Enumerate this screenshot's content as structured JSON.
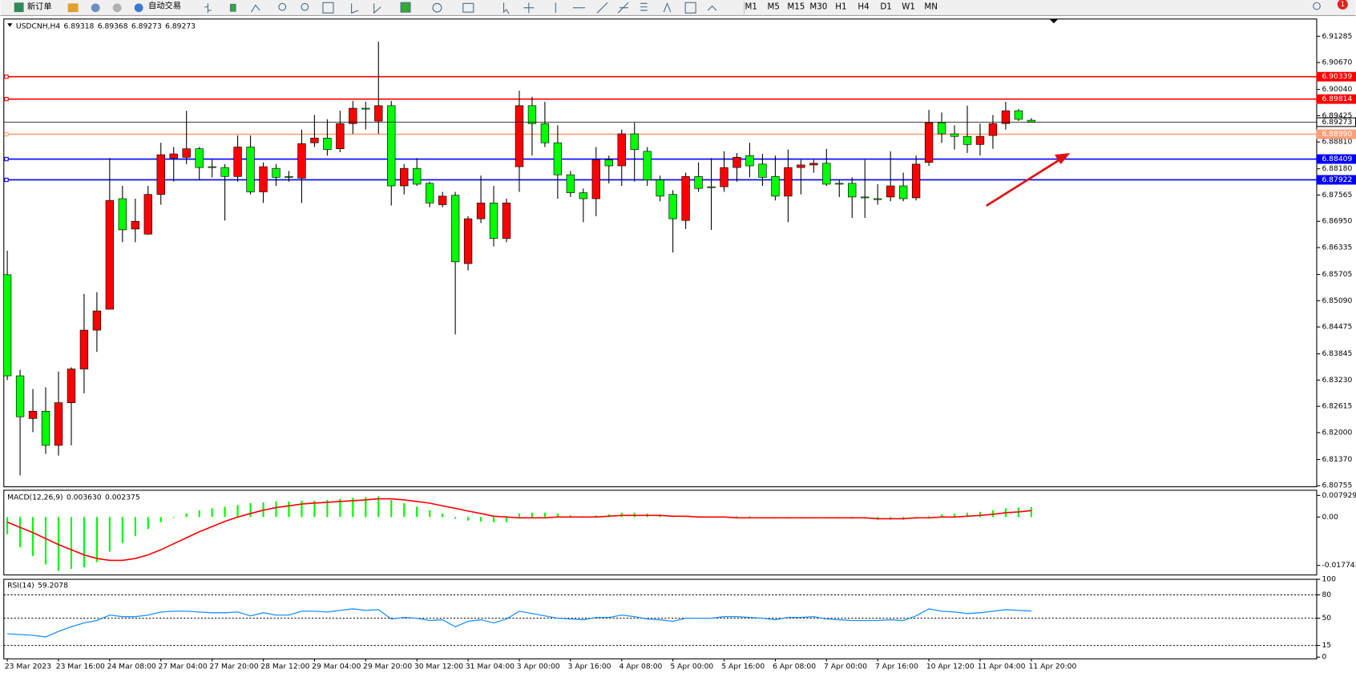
{
  "toolbar": {
    "buttons": [
      "新订单",
      "自动交易"
    ],
    "timeframes": [
      "M1",
      "M5",
      "M15",
      "M30",
      "H1",
      "H4",
      "D1",
      "W1",
      "MN"
    ],
    "notification_count": 1
  },
  "chart_data": [
    {
      "type": "candlestick",
      "symbol": "USDCNH,H4",
      "categories": [
        "23 Mar 2023",
        null,
        null,
        null,
        "23 Mar 16:00",
        null,
        null,
        null,
        "24 Mar 08:00",
        null,
        null,
        null,
        "27 Mar 04:00",
        null,
        null,
        null,
        "27 Mar 20:00",
        null,
        null,
        null,
        "28 Mar 12:00",
        null,
        null,
        null,
        "29 Mar 04:00",
        null,
        null,
        null,
        "29 Mar 20:00",
        null,
        null,
        null,
        "30 Mar 12:00",
        null,
        null,
        null,
        "31 Mar 04:00",
        null,
        null,
        null,
        "3 Apr 00:00",
        null,
        null,
        null,
        "3 Apr 16:00",
        null,
        null,
        null,
        "4 Apr 08:00",
        null,
        null,
        null,
        "5 Apr 00:00",
        null,
        null,
        null,
        "5 Apr 16:00",
        null,
        null,
        null,
        "6 Apr 08:00",
        null,
        null,
        null,
        "7 Apr 00:00",
        null,
        null,
        null,
        "7 Apr 16:00",
        null,
        null,
        null,
        "10 Apr 12:00",
        null,
        null,
        null,
        "11 Apr 04:00",
        null,
        null,
        null,
        "11 Apr 20:00"
      ],
      "open": [
        6.857,
        6.8333,
        6.8233,
        6.825,
        6.817,
        6.827,
        6.8349,
        6.844,
        6.8489,
        6.8748,
        6.8677,
        6.8665,
        6.8758,
        6.8843,
        6.8845,
        6.8865,
        6.8823,
        6.8821,
        6.88,
        6.8869,
        6.8764,
        6.8819,
        6.88,
        6.8796,
        6.8879,
        6.889,
        6.8865,
        6.8924,
        6.896,
        6.893,
        6.8966,
        6.8778,
        6.8819,
        6.8784,
        6.8734,
        6.8756,
        6.8596,
        6.8701,
        6.8738,
        6.8655,
        6.8823,
        6.8966,
        6.8924,
        6.8879,
        6.8804,
        6.8762,
        6.8748,
        6.8839,
        6.8825,
        6.89,
        6.8859,
        6.8792,
        6.8758,
        6.8697,
        6.88,
        6.8776,
        6.8776,
        6.8821,
        6.8849,
        6.8829,
        6.88,
        6.8754,
        6.8821,
        6.8827,
        6.8831,
        6.8784,
        6.8784,
        6.8752,
        6.8748,
        6.8752,
        6.8778,
        6.875,
        6.8833,
        6.8926,
        6.89,
        6.8894,
        6.8875,
        6.8896,
        6.8924,
        6.8954,
        6.89318
      ],
      "high": [
        6.8626,
        6.8347,
        6.8302,
        6.8306,
        6.8343,
        6.8353,
        6.8525,
        6.8529,
        6.8843,
        6.8778,
        6.8748,
        6.8778,
        6.8879,
        6.8869,
        6.8954,
        6.8869,
        6.8839,
        6.8829,
        6.8896,
        6.8896,
        6.8833,
        6.8829,
        6.8813,
        6.891,
        6.8944,
        6.8934,
        6.8954,
        6.8977,
        6.8975,
        6.9116,
        6.8977,
        6.8829,
        6.8843,
        6.8788,
        6.8764,
        6.8764,
        6.8707,
        6.8802,
        6.8778,
        6.8748,
        6.9001,
        6.8987,
        6.8975,
        6.892,
        6.8813,
        6.8772,
        6.8869,
        6.8849,
        6.891,
        6.8926,
        6.8869,
        6.8802,
        6.8768,
        6.8809,
        6.8833,
        6.8843,
        6.8859,
        6.8855,
        6.8879,
        6.8853,
        6.8849,
        6.8863,
        6.8839,
        6.8839,
        6.8865,
        6.8792,
        6.8798,
        6.8839,
        6.8782,
        6.8859,
        6.8809,
        6.8849,
        6.8956,
        6.895,
        6.892,
        6.8966,
        6.8924,
        6.8944,
        6.8975,
        6.8958,
        6.89368
      ],
      "low": [
        6.8323,
        6.81,
        6.8201,
        6.815,
        6.8146,
        6.817,
        6.8292,
        6.8389,
        6.8489,
        6.8646,
        6.8646,
        6.8663,
        6.8734,
        6.8788,
        6.8829,
        6.8792,
        6.8798,
        6.8697,
        6.8788,
        6.8758,
        6.8738,
        6.8778,
        6.8788,
        6.8738,
        6.8869,
        6.8849,
        6.8857,
        6.89,
        6.891,
        6.89,
        6.8732,
        6.8758,
        6.8778,
        6.8728,
        6.8728,
        6.843,
        6.858,
        6.8691,
        6.8636,
        6.8646,
        6.8764,
        6.8849,
        6.8869,
        6.8748,
        6.8752,
        6.8693,
        6.8707,
        6.8784,
        6.8778,
        6.8788,
        6.8778,
        6.8742,
        6.8622,
        6.8677,
        6.8764,
        6.8675,
        6.8764,
        6.8788,
        6.8798,
        6.8778,
        6.8744,
        6.8693,
        6.8758,
        6.8809,
        6.8778,
        6.8752,
        6.8703,
        6.8703,
        6.8734,
        6.8742,
        6.8742,
        6.8744,
        6.8825,
        6.8879,
        6.8863,
        6.8855,
        6.8849,
        6.8865,
        6.891,
        6.893,
        6.89273
      ],
      "close": [
        6.8333,
        6.8237,
        6.825,
        6.817,
        6.827,
        6.8349,
        6.844,
        6.8485,
        6.8744,
        6.8675,
        6.8695,
        6.8758,
        6.8851,
        6.8853,
        6.8865,
        6.8821,
        6.8821,
        6.88,
        6.8869,
        6.8764,
        6.8823,
        6.8798,
        6.8798,
        6.8877,
        6.889,
        6.8863,
        6.8924,
        6.896,
        6.8958,
        6.8966,
        6.8778,
        6.8819,
        6.8782,
        6.8738,
        6.8754,
        6.86,
        6.8701,
        6.8738,
        6.8655,
        6.8738,
        6.8966,
        6.8924,
        6.8879,
        6.8804,
        6.8762,
        6.8748,
        6.8839,
        6.8825,
        6.89,
        6.8863,
        6.8792,
        6.8754,
        6.8701,
        6.88,
        6.8772,
        6.8774,
        6.8821,
        6.8845,
        6.8825,
        6.8798,
        6.8754,
        6.8821,
        6.8827,
        6.8831,
        6.8782,
        6.8782,
        6.8752,
        6.875,
        6.8748,
        6.8778,
        6.8748,
        6.8829,
        6.8926,
        6.89,
        6.8894,
        6.8875,
        6.8894,
        6.8924,
        6.8954,
        6.8934,
        6.89273
      ],
      "up_color": "#ff0000",
      "down_color": "#00ff00",
      "ylim": [
        6.8073,
        6.9169
      ],
      "yticks": [
        6.91285,
        {
          "value": 6.9067,
          "label": "6.90670"
        },
        {
          "value": 6.9004,
          "label": "6.90040"
        },
        6.89425,
        {
          "value": 6.8881,
          "label": "6.88810"
        },
        {
          "value": 6.8818,
          "label": "6.88180"
        },
        6.87565,
        {
          "value": 6.8695,
          "label": "6.86950"
        },
        6.86335,
        6.85705,
        {
          "value": 6.8509,
          "label": "6.85090"
        },
        6.84475,
        6.83845,
        {
          "value": 6.8323,
          "label": "6.83230"
        },
        6.82615,
        {
          "value": 6.82,
          "label": "6.82000"
        },
        {
          "value": 6.8137,
          "label": "6.81370"
        },
        6.80755
      ],
      "levels": [
        {
          "value": 6.90339,
          "color": "#ff0000"
        },
        {
          "value": 6.89814,
          "color": "#ff0000"
        },
        {
          "value": 6.8899,
          "label": "6.88990",
          "color": "#ffa07a"
        },
        {
          "value": 6.88409,
          "color": "#0000ff"
        },
        {
          "value": 6.87922,
          "color": "#0000ff"
        }
      ]
    },
    {
      "type": "macd",
      "title": "MACD(12,26,9)",
      "histogram": {
        "color": "#00ff00",
        "values": [
          -0.0063,
          -0.0111,
          -0.0143,
          -0.0174,
          -0.0197,
          -0.019,
          -0.0184,
          -0.0165,
          -0.0127,
          -0.0095,
          -0.007,
          -0.0044,
          -0.0019,
          -0.0003,
          0.0013,
          0.0025,
          0.0032,
          0.0038,
          0.0044,
          0.0051,
          0.0054,
          0.0057,
          0.0057,
          0.006,
          0.006,
          0.0063,
          0.0067,
          0.007,
          0.0073,
          0.0076,
          0.0063,
          0.0051,
          0.0038,
          0.0025,
          0.0013,
          -0.0006,
          -0.0013,
          -0.0016,
          -0.0019,
          -0.0019,
          0.0013,
          0.0016,
          0.0016,
          0.0013,
          0.0006,
          0.0003,
          0.0006,
          0.001,
          0.0016,
          0.0016,
          0.0013,
          0.001,
          0.0003,
          0.0003,
          0.0003,
          0,
          0.0003,
          0.0003,
          0.0003,
          0,
          -0.0003,
          -0.0003,
          0,
          0,
          0,
          -0.0003,
          -0.0006,
          -0.0006,
          -0.001,
          -0.001,
          -0.001,
          -0.0006,
          0.0003,
          0.001,
          0.0013,
          0.0016,
          0.0019,
          0.0025,
          0.0032,
          0.0035,
          0.00363
        ],
        "value_labels": [
          null,
          null,
          null,
          null,
          null,
          null,
          null,
          null,
          null,
          null,
          null,
          null,
          null,
          null,
          null,
          null,
          null,
          null,
          null,
          null,
          null,
          null,
          null,
          null,
          null,
          null,
          null,
          null,
          null,
          null,
          null,
          null,
          null,
          null,
          null,
          null,
          null,
          null,
          null,
          null,
          null,
          null,
          null,
          null,
          null,
          null,
          null,
          null,
          null,
          null,
          null,
          null,
          null,
          null,
          null,
          null,
          null,
          null,
          null,
          null,
          null,
          null,
          null,
          null,
          null,
          null,
          null,
          null,
          null,
          null,
          null,
          null,
          null,
          null,
          null,
          null,
          null,
          null,
          null,
          null,
          "0.003630"
        ]
      },
      "signal": {
        "color": "#ff0000",
        "values": [
          -0.0019,
          -0.0038,
          -0.0057,
          -0.0079,
          -0.0101,
          -0.012,
          -0.0139,
          -0.0152,
          -0.0159,
          -0.0159,
          -0.0152,
          -0.0139,
          -0.012,
          -0.0098,
          -0.0076,
          -0.0054,
          -0.0035,
          -0.0016,
          0,
          0.0013,
          0.0025,
          0.0035,
          0.0041,
          0.0048,
          0.0051,
          0.0054,
          0.0057,
          0.006,
          0.0063,
          0.0067,
          0.0067,
          0.0063,
          0.0057,
          0.0051,
          0.0041,
          0.0032,
          0.0022,
          0.0013,
          0.0003,
          0,
          -0.0003,
          -0.0003,
          -0.0003,
          0,
          0,
          0,
          0,
          0.0003,
          0.0006,
          0.0006,
          0.0006,
          0.0006,
          0.0003,
          0.0003,
          0,
          0,
          0,
          -0.0003,
          -0.0003,
          -0.0003,
          -0.0003,
          -0.0003,
          -0.0003,
          -0.0003,
          -0.0003,
          -0.0003,
          -0.0003,
          -0.0003,
          -0.0006,
          -0.0006,
          -0.0006,
          -0.0003,
          -0.0003,
          0,
          0,
          0.0003,
          0.0006,
          0.001,
          0.0016,
          0.0019,
          0.002375
        ]
      },
      "ylim": [
        -0.02125,
        0.00983
      ],
      "yticks": [
        0.007929,
        {
          "value": 0,
          "label": "0.00"
        },
        -0.017743
      ]
    },
    {
      "type": "rsi",
      "title": "RSI(14)",
      "color": "#1e90ff",
      "values": [
        30,
        29,
        28,
        26,
        33,
        39,
        44,
        47,
        54,
        52,
        52,
        54,
        58,
        59,
        59,
        58,
        57,
        57,
        58,
        53,
        57,
        54,
        54,
        59,
        59,
        58,
        60,
        62,
        60,
        61,
        49,
        51,
        50,
        47,
        48,
        39,
        46,
        48,
        44,
        49,
        59,
        56,
        53,
        50,
        49,
        48,
        51,
        51,
        54,
        52,
        49,
        48,
        46,
        50,
        50,
        50,
        52,
        52,
        51,
        50,
        48,
        51,
        51,
        52,
        49,
        48,
        47,
        47,
        47,
        48,
        47,
        53,
        62,
        59,
        58,
        56,
        57,
        59,
        61,
        60,
        59.2078
      ],
      "ylim": [
        0,
        100
      ],
      "yticks": [
        100,
        80,
        50,
        15,
        0
      ]
    }
  ]
}
